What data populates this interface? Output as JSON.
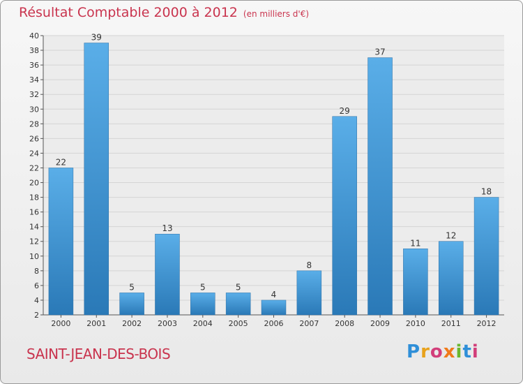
{
  "header": {
    "title": "Résultat Comptable 2000 à 2012",
    "subtitle": "(en milliers d'€)"
  },
  "footer": {
    "place": "SAINT-JEAN-DES-BOIS",
    "logo_letters": [
      "P",
      "r",
      "o",
      "x",
      "i",
      "t",
      "i"
    ]
  },
  "colors": {
    "title": "#c9344e",
    "bar_top": "#5aaee8",
    "bar_bottom": "#2a79b7"
  },
  "chart_data": {
    "type": "bar",
    "title": "Résultat Comptable 2000 à 2012",
    "subtitle": "(en milliers d'€)",
    "xlabel": "",
    "ylabel": "",
    "categories": [
      "2000",
      "2001",
      "2002",
      "2003",
      "2004",
      "2005",
      "2006",
      "2007",
      "2008",
      "2009",
      "2010",
      "2011",
      "2012"
    ],
    "values": [
      22,
      39,
      5,
      13,
      5,
      5,
      4,
      8,
      29,
      37,
      11,
      12,
      18
    ],
    "ylim": [
      2,
      40
    ],
    "yticks": [
      2,
      4,
      6,
      8,
      10,
      12,
      14,
      16,
      18,
      20,
      22,
      24,
      26,
      28,
      30,
      32,
      34,
      36,
      38,
      40
    ],
    "grid": true
  }
}
